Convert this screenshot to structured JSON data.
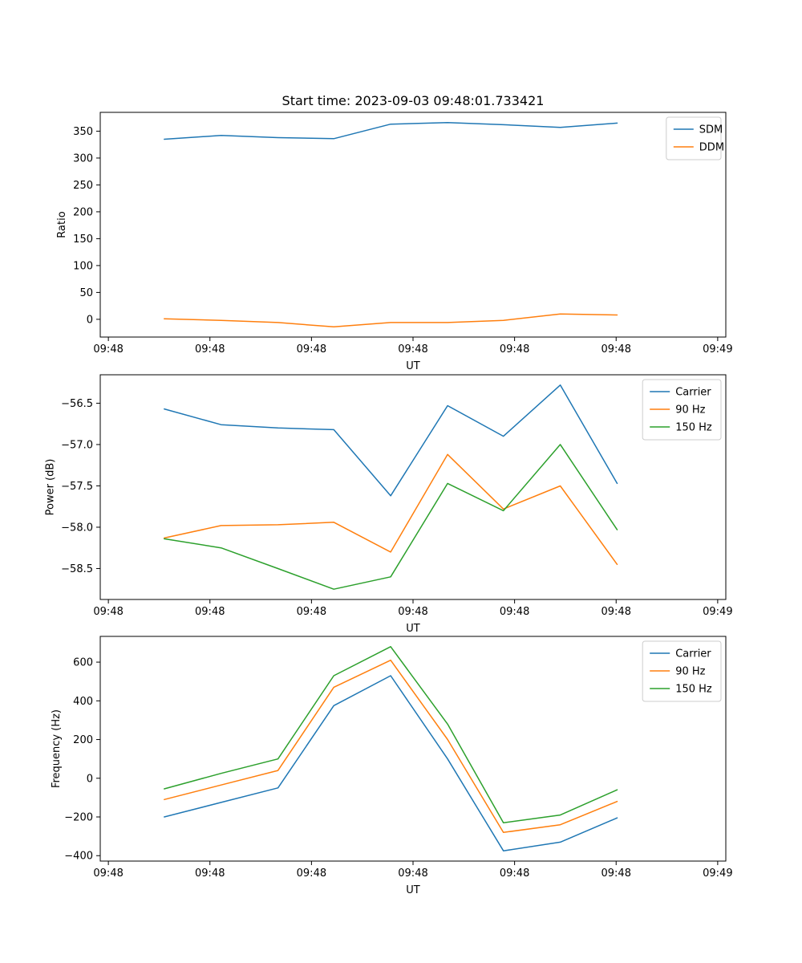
{
  "figure": {
    "title": "Start time: 2023-09-03 09:48:01.733421",
    "background": "#ffffff"
  },
  "chart_data": [
    {
      "type": "line",
      "title": "Start time: 2023-09-03 09:48:01.733421",
      "xlabel": "UT",
      "ylabel": "Ratio",
      "xlim": [
        -0.08,
        6.08
      ],
      "ylim": [
        -33,
        385
      ],
      "x_ticks": [
        0,
        1,
        2,
        3,
        4,
        5,
        6
      ],
      "x_ticklabels": [
        "09:48",
        "09:48",
        "09:48",
        "09:48",
        "09:48",
        "09:48",
        "09:49"
      ],
      "y_ticks": [
        0,
        50,
        100,
        150,
        200,
        250,
        300,
        350
      ],
      "y_ticklabels": [
        "0",
        "50",
        "100",
        "150",
        "200",
        "250",
        "300",
        "350"
      ],
      "grid": false,
      "legend_position": "upper right",
      "x": [
        0.55,
        1.11,
        1.67,
        2.22,
        2.78,
        3.34,
        3.89,
        4.45,
        5.01
      ],
      "series": [
        {
          "name": "SDM",
          "color": "#1f77b4",
          "values": [
            335,
            342,
            338,
            336,
            363,
            366,
            362,
            357,
            365
          ]
        },
        {
          "name": "DDM",
          "color": "#ff7f0e",
          "values": [
            1,
            -2,
            -6,
            -14,
            -6,
            -6,
            -2,
            10,
            8
          ]
        }
      ]
    },
    {
      "type": "line",
      "title": "",
      "xlabel": "UT",
      "ylabel": "Power (dB)",
      "xlim": [
        -0.08,
        6.08
      ],
      "ylim": [
        -58.874,
        -56.156
      ],
      "x_ticks": [
        0,
        1,
        2,
        3,
        4,
        5,
        6
      ],
      "x_ticklabels": [
        "09:48",
        "09:48",
        "09:48",
        "09:48",
        "09:48",
        "09:48",
        "09:49"
      ],
      "y_ticks": [
        -58.5,
        -58.0,
        -57.5,
        -57.0,
        -56.5
      ],
      "y_ticklabels": [
        "−58.5",
        "−58.0",
        "−57.5",
        "−57.0",
        "−56.5"
      ],
      "grid": false,
      "legend_position": "upper right",
      "x": [
        0.55,
        1.11,
        1.67,
        2.22,
        2.78,
        3.34,
        3.89,
        4.45,
        5.01
      ],
      "series": [
        {
          "name": "Carrier",
          "color": "#1f77b4",
          "values": [
            -56.57,
            -56.76,
            -56.8,
            -56.82,
            -57.62,
            -56.53,
            -56.9,
            -56.28,
            -57.47
          ]
        },
        {
          "name": "90 Hz",
          "color": "#ff7f0e",
          "values": [
            -58.13,
            -57.98,
            -57.97,
            -57.94,
            -58.3,
            -57.12,
            -57.78,
            -57.5,
            -58.45
          ]
        },
        {
          "name": "150 Hz",
          "color": "#2ca02c",
          "values": [
            -58.14,
            -58.25,
            -58.5,
            -58.75,
            -58.6,
            -57.47,
            -57.8,
            -57.0,
            -58.03
          ]
        }
      ]
    },
    {
      "type": "line",
      "title": "",
      "xlabel": "UT",
      "ylabel": "Frequency (Hz)",
      "xlim": [
        -0.08,
        6.08
      ],
      "ylim": [
        -428,
        733
      ],
      "x_ticks": [
        0,
        1,
        2,
        3,
        4,
        5,
        6
      ],
      "x_ticklabels": [
        "09:48",
        "09:48",
        "09:48",
        "09:48",
        "09:48",
        "09:48",
        "09:49"
      ],
      "y_ticks": [
        -400,
        -200,
        0,
        200,
        400,
        600
      ],
      "y_ticklabels": [
        "−400",
        "−200",
        "0",
        "200",
        "400",
        "600"
      ],
      "grid": false,
      "legend_position": "upper right",
      "x": [
        0.55,
        1.11,
        1.67,
        2.22,
        2.78,
        3.34,
        3.89,
        4.45,
        5.01
      ],
      "series": [
        {
          "name": "Carrier",
          "color": "#1f77b4",
          "values": [
            -200,
            -125,
            -50,
            375,
            530,
            100,
            -375,
            -330,
            -205
          ]
        },
        {
          "name": "90 Hz",
          "color": "#ff7f0e",
          "values": [
            -110,
            -35,
            40,
            470,
            610,
            200,
            -280,
            -240,
            -120
          ]
        },
        {
          "name": "150 Hz",
          "color": "#2ca02c",
          "values": [
            -55,
            25,
            100,
            530,
            680,
            280,
            -230,
            -190,
            -60
          ]
        }
      ]
    }
  ]
}
